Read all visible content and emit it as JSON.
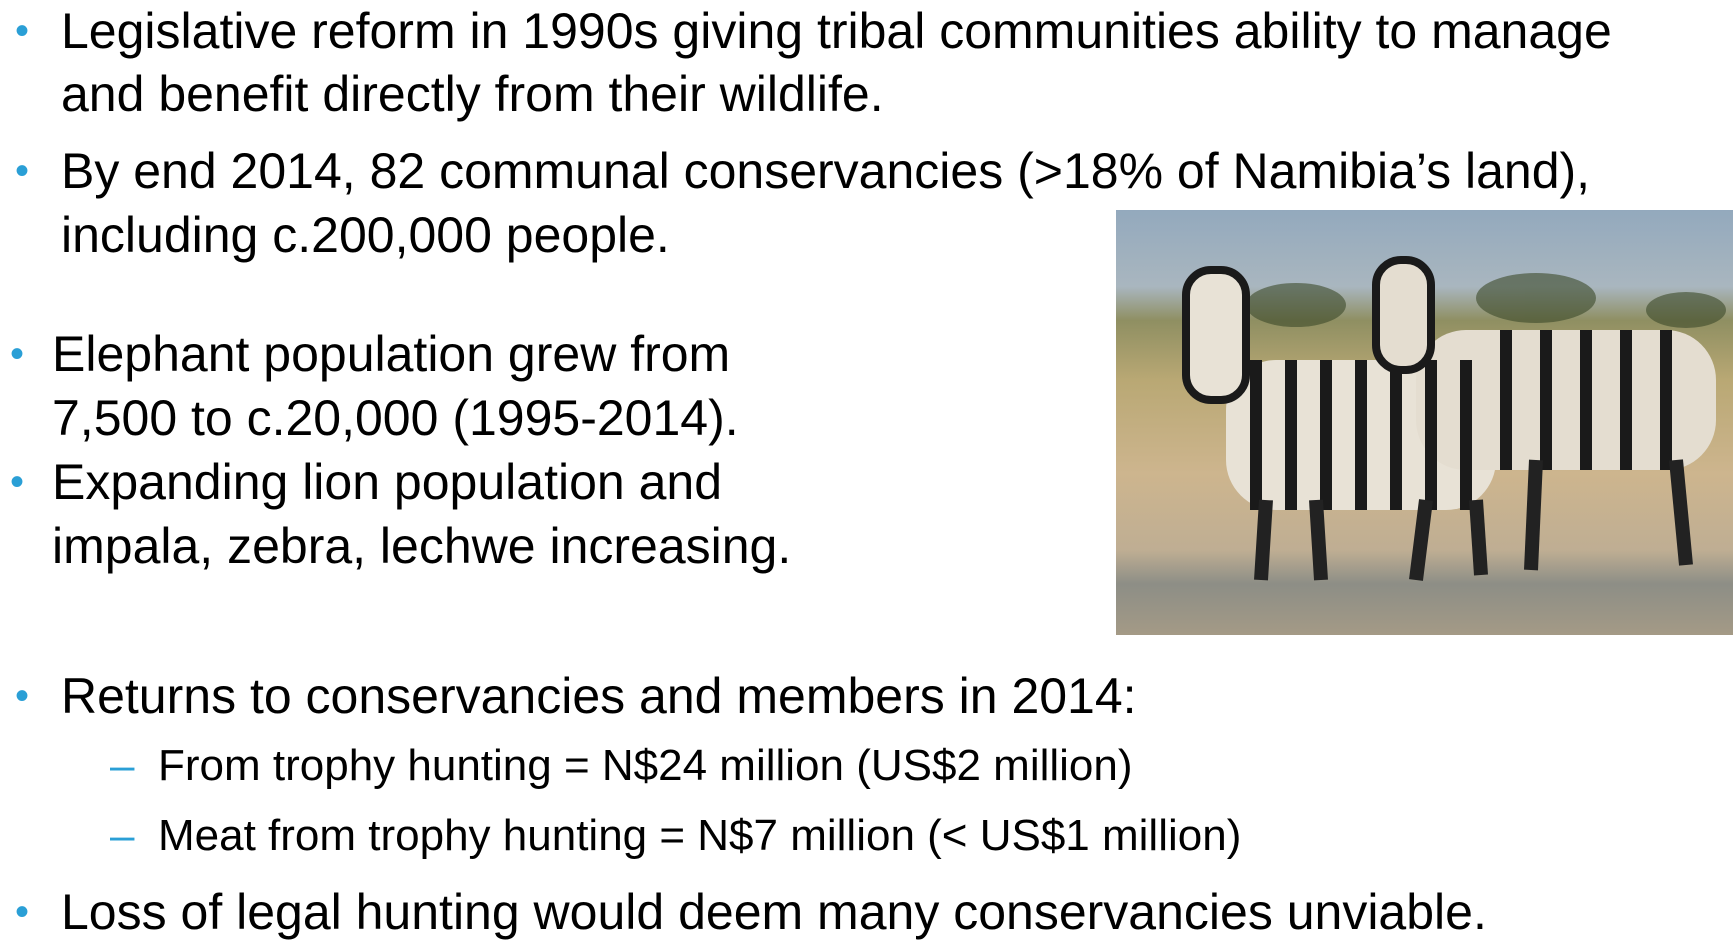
{
  "bullets": [
    {
      "lines": [
        "Legislative reform in 1990s giving tribal communities ability to manage",
        "and benefit directly from their wildlife."
      ]
    },
    {
      "lines": [
        "By end 2014, 82 communal conservancies (>18% of Namibia’s land),",
        "including c.200,000 people."
      ]
    },
    {
      "lines": [
        "Elephant population grew from",
        "7,500 to c.20,000 (1995-2014)."
      ]
    },
    {
      "lines": [
        "Expanding lion population and",
        "impala, zebra, lechwe increasing."
      ]
    },
    {
      "lines": [
        "Returns to conservancies and members in 2014:"
      ],
      "sub": [
        "From trophy hunting = N$24 million (US$2 million)",
        "Meat from trophy hunting = N$7 million (< US$1 million)"
      ]
    },
    {
      "lines": [
        "Loss of legal hunting would deem many conservancies unviable."
      ]
    }
  ]
}
